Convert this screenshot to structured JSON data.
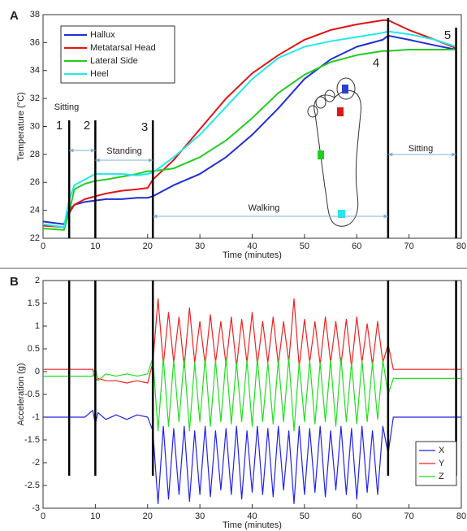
{
  "chart_data": [
    {
      "type": "line",
      "panel": "A",
      "ylabel": "Temperature (°C)",
      "xlabel": "Time (minutes)",
      "xlim": [
        0,
        80
      ],
      "xticks": [
        0,
        10,
        20,
        30,
        40,
        50,
        60,
        70,
        80
      ],
      "ylim": [
        22,
        38
      ],
      "yticks": [
        22,
        24,
        26,
        28,
        30,
        32,
        34,
        36,
        38
      ],
      "legend": "upper left",
      "x": [
        0,
        4,
        5,
        6,
        8,
        10,
        12,
        15,
        18,
        20,
        21,
        25,
        30,
        35,
        40,
        45,
        50,
        55,
        60,
        65,
        66,
        70,
        75,
        79
      ],
      "series": [
        {
          "name": "Hallux",
          "color": "#1f2fd6",
          "values": [
            23.2,
            23.0,
            24.0,
            24.4,
            24.6,
            24.7,
            24.8,
            24.8,
            24.9,
            24.9,
            25.0,
            25.8,
            26.6,
            27.8,
            29.4,
            31.3,
            33.4,
            34.8,
            35.7,
            36.2,
            36.5,
            36.2,
            35.8,
            35.5
          ]
        },
        {
          "name": "Metatarsal Head",
          "color": "#e01515",
          "values": [
            22.9,
            22.8,
            23.8,
            24.4,
            24.8,
            25.0,
            25.2,
            25.4,
            25.5,
            25.6,
            26.2,
            27.6,
            29.8,
            32.0,
            33.8,
            35.1,
            36.2,
            36.9,
            37.3,
            37.6,
            37.6,
            36.9,
            36.2,
            35.6
          ]
        },
        {
          "name": "Lateral Side",
          "color": "#22cc22",
          "values": [
            22.7,
            22.6,
            23.9,
            25.5,
            25.9,
            26.1,
            26.2,
            26.4,
            26.6,
            26.8,
            26.8,
            27.0,
            27.8,
            29.0,
            30.6,
            32.4,
            33.7,
            34.6,
            35.1,
            35.4,
            35.4,
            35.5,
            35.5,
            35.5
          ]
        },
        {
          "name": "Heel",
          "color": "#22e8ee",
          "values": [
            23.0,
            22.8,
            24.8,
            25.8,
            26.2,
            26.6,
            26.6,
            26.6,
            26.5,
            26.6,
            26.7,
            27.8,
            29.4,
            31.4,
            33.4,
            34.9,
            35.7,
            36.1,
            36.4,
            36.7,
            36.8,
            36.6,
            36.2,
            35.7
          ]
        }
      ],
      "events": [
        {
          "label": "1",
          "x": 5
        },
        {
          "label": "2",
          "x": 10
        },
        {
          "label": "3",
          "x": 21
        },
        {
          "label": "4",
          "x": 66
        },
        {
          "label": "5",
          "x": 79
        }
      ],
      "phases": [
        {
          "label": "Sitting",
          "start": 5,
          "end": 10
        },
        {
          "label": "Standing",
          "start": 10,
          "end": 21
        },
        {
          "label": "Walking",
          "start": 21,
          "end": 66
        },
        {
          "label": "Sitting",
          "start": 66,
          "end": 79
        }
      ]
    },
    {
      "type": "line",
      "panel": "B",
      "ylabel": "Acceleration (g)",
      "xlabel": "Time (minutes)",
      "xlim": [
        0,
        80
      ],
      "xticks": [
        0,
        10,
        20,
        30,
        40,
        50,
        60,
        70,
        80
      ],
      "ylim": [
        -3,
        2
      ],
      "yticks": [
        -3,
        -2.5,
        -2,
        -1.5,
        -1,
        -0.5,
        0,
        0.5,
        1,
        1.5,
        2
      ],
      "legend": "lower right",
      "x": [
        0,
        4,
        5,
        6,
        8,
        9.5,
        10,
        10.5,
        12,
        14,
        16,
        18,
        20,
        21,
        22,
        23,
        24,
        25,
        26,
        27,
        28,
        29,
        30,
        31,
        32,
        33,
        34,
        35,
        36,
        37,
        38,
        39,
        40,
        41,
        42,
        43,
        44,
        45,
        46,
        47,
        48,
        49,
        50,
        51,
        52,
        53,
        54,
        55,
        56,
        57,
        58,
        59,
        60,
        61,
        62,
        63,
        64,
        65,
        66,
        67,
        70,
        75,
        80
      ],
      "series": [
        {
          "name": "X",
          "color": "#2222ee",
          "values": [
            -1.0,
            -1.0,
            -1.0,
            -1.0,
            -1.0,
            -0.85,
            -1.15,
            -0.9,
            -1.05,
            -0.95,
            -1.05,
            -0.95,
            -1.0,
            -1.3,
            -2.9,
            -1.2,
            -2.8,
            -1.25,
            -2.7,
            -1.2,
            -2.85,
            -1.3,
            -2.7,
            -1.2,
            -2.75,
            -1.3,
            -2.6,
            -1.25,
            -2.7,
            -1.2,
            -2.8,
            -1.3,
            -2.65,
            -1.2,
            -2.7,
            -1.25,
            -2.75,
            -1.2,
            -2.6,
            -1.3,
            -2.9,
            -1.2,
            -2.7,
            -1.25,
            -2.65,
            -1.2,
            -2.75,
            -1.3,
            -2.6,
            -1.2,
            -2.7,
            -1.25,
            -2.8,
            -1.2,
            -2.65,
            -1.3,
            -2.7,
            -1.2,
            -1.8,
            -1.0,
            -1.0,
            -1.0,
            -1.0
          ]
        },
        {
          "name": "Y",
          "color": "#ee2222",
          "values": [
            0.05,
            0.05,
            0.05,
            0.05,
            0.05,
            0.05,
            -0.2,
            -0.15,
            -0.2,
            -0.2,
            -0.25,
            -0.2,
            -0.25,
            0.2,
            1.6,
            0.15,
            1.3,
            0.2,
            1.2,
            0.1,
            1.4,
            0.2,
            1.1,
            0.15,
            1.25,
            0.2,
            1.1,
            0.15,
            1.2,
            0.1,
            1.15,
            0.2,
            1.3,
            0.15,
            1.1,
            0.2,
            1.2,
            0.15,
            1.1,
            0.2,
            1.6,
            0.1,
            1.15,
            0.2,
            1.1,
            0.15,
            1.2,
            0.2,
            1.1,
            0.15,
            1.15,
            0.1,
            1.2,
            0.2,
            1.05,
            0.15,
            1.1,
            0.2,
            0.6,
            0.05,
            0.05,
            0.05,
            0.05
          ]
        },
        {
          "name": "Z",
          "color": "#22dd22",
          "values": [
            -0.1,
            -0.1,
            -0.1,
            -0.1,
            -0.1,
            -0.1,
            0.1,
            -0.2,
            -0.05,
            -0.1,
            -0.05,
            -0.1,
            -0.05,
            0.3,
            -1.3,
            0.3,
            -1.2,
            0.25,
            -1.1,
            0.3,
            -1.3,
            0.2,
            -1.1,
            0.3,
            -1.2,
            0.25,
            -1.1,
            0.3,
            -1.15,
            0.2,
            -1.1,
            0.25,
            -1.2,
            0.3,
            -1.1,
            0.2,
            -1.15,
            0.25,
            -1.1,
            0.3,
            -1.3,
            0.2,
            -1.1,
            0.25,
            -1.15,
            0.2,
            -1.1,
            0.25,
            -1.2,
            0.3,
            -1.1,
            0.2,
            -1.15,
            0.25,
            -1.1,
            0.2,
            -1.05,
            0.25,
            -0.5,
            -0.15,
            -0.15,
            -0.15,
            -0.15
          ]
        }
      ],
      "events": [
        {
          "label": "",
          "x": 5
        },
        {
          "label": "",
          "x": 10
        },
        {
          "label": "",
          "x": 21
        },
        {
          "label": "",
          "x": 66
        },
        {
          "label": "",
          "x": 79
        }
      ]
    }
  ]
}
